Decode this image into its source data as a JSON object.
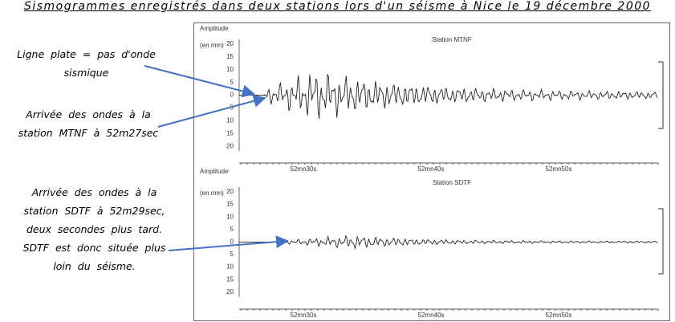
{
  "title": "Sismogrammes enregistrés dans deux stations lors d'un séisme à Nice le 19 décembre 2000",
  "annotations": [
    "Ligne plate = pas d'onde sismique",
    "Arrivée des ondes à la station MTNF à 52m27sec",
    "Arrivée des ondes à la station SDTF à 52m29sec, deux secondes plus tard. SDTF est donc située plus loin du séisme."
  ],
  "panels": [
    {
      "y_label": "Amplitude",
      "unit": "(en mm)",
      "station": "Station MTNF",
      "yticks": [
        "20",
        "15",
        "10",
        "5",
        "0",
        "5",
        "10",
        "15",
        "20"
      ],
      "xticks": [
        "52mn30s",
        "52mn40s",
        "52mn50s"
      ]
    },
    {
      "y_label": "Amplitude",
      "unit": "(en mm)",
      "station": "Station SDTF",
      "yticks": [
        "20",
        "15",
        "10",
        "5",
        "0",
        "5",
        "10",
        "15",
        "20"
      ],
      "xticks": [
        "52mn30s",
        "52mn40s",
        "52mn50s"
      ]
    }
  ]
}
